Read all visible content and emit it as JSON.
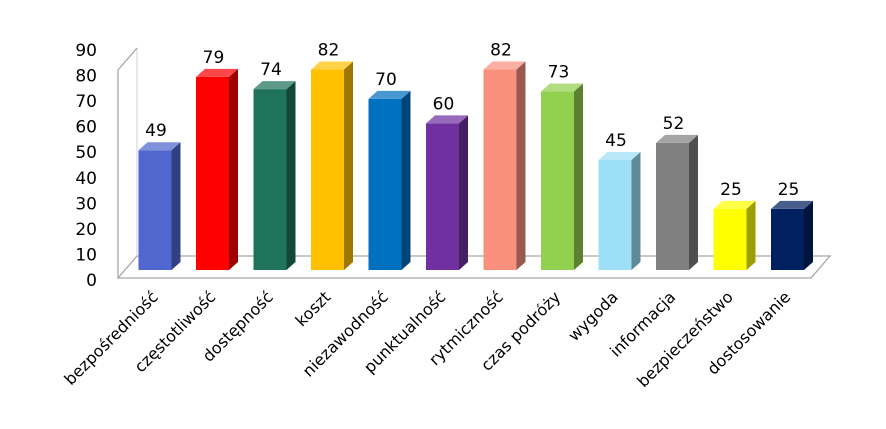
{
  "chart_data": {
    "type": "bar",
    "title": "",
    "xlabel": "",
    "ylabel": "",
    "ylim": [
      0,
      90
    ],
    "yticks": [
      0,
      10,
      20,
      30,
      40,
      50,
      60,
      70,
      80,
      90
    ],
    "grid": false,
    "legend": "none",
    "style": "3d-column",
    "categories": [
      "bezpośredniość",
      "częstotliwość",
      "dostępność",
      "koszt",
      "niezawodność",
      "punktualność",
      "rytmiczność",
      "czas podróży",
      "wygoda",
      "informacja",
      "bezpieczeństwo",
      "dostosowanie"
    ],
    "values": [
      49,
      79,
      74,
      82,
      70,
      60,
      82,
      73,
      45,
      52,
      25,
      25
    ],
    "colors": [
      "#4F67CF",
      "#FF0000",
      "#1F735A",
      "#FFC000",
      "#0070C0",
      "#7030A0",
      "#F9907E",
      "#92D050",
      "#9DDFF7",
      "#808080",
      "#FFFF00",
      "#002060"
    ]
  }
}
